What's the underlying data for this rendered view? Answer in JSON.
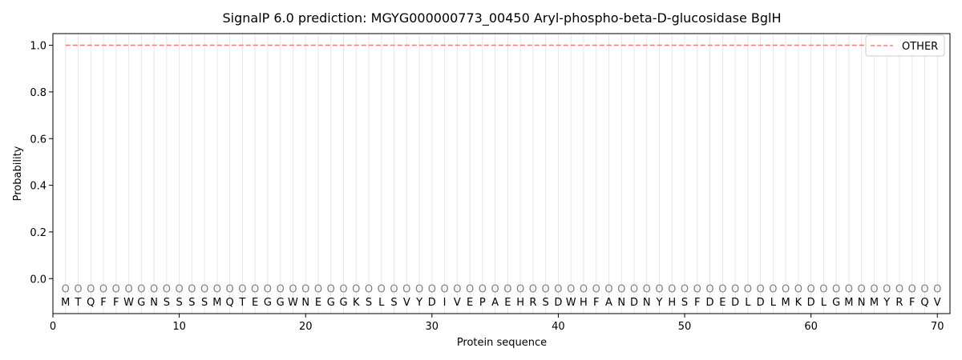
{
  "chart_data": {
    "type": "line",
    "title": "SignalP 6.0 prediction: MGYG000000773_00450 Aryl-phospho-beta-D-glucosidase BglH",
    "xlabel": "Protein sequence",
    "ylabel": "Probability",
    "xlim": [
      0,
      71
    ],
    "ylim": [
      -0.15,
      1.05
    ],
    "xticks": [
      0,
      10,
      20,
      30,
      40,
      50,
      60,
      70
    ],
    "yticks": [
      0.0,
      0.2,
      0.4,
      0.6,
      0.8,
      1.0
    ],
    "sequence": [
      "M",
      "T",
      "Q",
      "F",
      "F",
      "W",
      "G",
      "N",
      "S",
      "S",
      "S",
      "S",
      "M",
      "Q",
      "T",
      "E",
      "G",
      "G",
      "W",
      "N",
      "E",
      "G",
      "G",
      "K",
      "S",
      "L",
      "S",
      "V",
      "Y",
      "D",
      "I",
      "V",
      "E",
      "P",
      "A",
      "E",
      "H",
      "R",
      "S",
      "D",
      "W",
      "H",
      "F",
      "A",
      "N",
      "D",
      "N",
      "Y",
      "H",
      "S",
      "F",
      "D",
      "E",
      "D",
      "L",
      "D",
      "L",
      "M",
      "K",
      "D",
      "L",
      "G",
      "M",
      "N",
      "M",
      "Y",
      "R",
      "F",
      "Q",
      "V"
    ],
    "region_label": "O",
    "series": [
      {
        "name": "OTHER",
        "color": "#f08080",
        "style": "dashed",
        "x_start": 1,
        "x_end": 70,
        "value": 1.0
      }
    ],
    "legend_position": "top-right",
    "grid": "vertical lines at each residue"
  }
}
